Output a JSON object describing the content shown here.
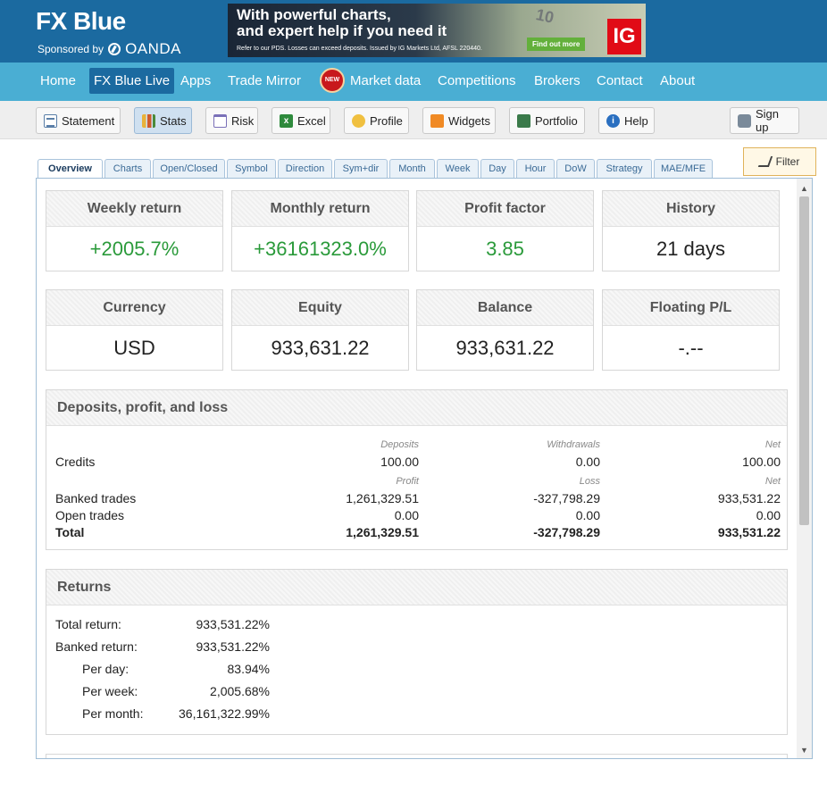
{
  "header": {
    "logo": "FX Blue",
    "sponsored_by": "Sponsored by",
    "sponsor_name": "OANDA",
    "banner": {
      "line1": "With powerful charts,",
      "line2": "and expert help if you need it",
      "fine_print": "Refer to our PDS. Losses can exceed deposits. Issued by IG Markets Ltd, AFSL 220440.",
      "cta": "Find out more",
      "brand": "IG",
      "note_text": "10"
    }
  },
  "nav": {
    "items": [
      "Home",
      "FX Blue Live",
      "Apps",
      "Trade Mirror",
      "Market data",
      "Competitions",
      "Brokers",
      "Contact",
      "About"
    ],
    "active": "FX Blue Live",
    "new_badge": "NEW"
  },
  "toolbar": {
    "buttons": [
      "Statement",
      "Stats",
      "Risk",
      "Excel",
      "Profile",
      "Widgets",
      "Portfolio",
      "Help"
    ],
    "signup": "Sign up",
    "active": "Stats"
  },
  "tabs": {
    "items": [
      "Overview",
      "Charts",
      "Open/Closed",
      "Symbol",
      "Direction",
      "Sym+dir",
      "Month",
      "Week",
      "Day",
      "Hour",
      "DoW",
      "Strategy",
      "MAE/MFE"
    ],
    "active": "Overview",
    "filter": "Filter"
  },
  "cards": [
    {
      "label": "Weekly return",
      "value": "+2005.7%",
      "positive": true
    },
    {
      "label": "Monthly return",
      "value": "+36161323.0%",
      "positive": true
    },
    {
      "label": "Profit factor",
      "value": "3.85",
      "positive": true
    },
    {
      "label": "History",
      "value": "21 days",
      "positive": false
    },
    {
      "label": "Currency",
      "value": "USD",
      "positive": false
    },
    {
      "label": "Equity",
      "value": "933,631.22",
      "positive": false
    },
    {
      "label": "Balance",
      "value": "933,631.22",
      "positive": false
    },
    {
      "label": "Floating P/L",
      "value": "-.--",
      "positive": false
    }
  ],
  "dpl": {
    "title": "Deposits, profit, and loss",
    "credits_head": [
      "Deposits",
      "Withdrawals",
      "Net"
    ],
    "credits": {
      "label": "Credits",
      "values": [
        "100.00",
        "0.00",
        "100.00"
      ]
    },
    "trades_head": [
      "Profit",
      "Loss",
      "Net"
    ],
    "banked": {
      "label": "Banked trades",
      "values": [
        "1,261,329.51",
        "-327,798.29",
        "933,531.22"
      ]
    },
    "open": {
      "label": "Open trades",
      "values": [
        "0.00",
        "0.00",
        "0.00"
      ]
    },
    "total": {
      "label": "Total",
      "values": [
        "1,261,329.51",
        "-327,798.29",
        "933,531.22"
      ]
    }
  },
  "returns": {
    "title": "Returns",
    "rows": [
      {
        "label": "Total return:",
        "value": "933,531.22%"
      },
      {
        "label": "Banked return:",
        "value": "933,531.22%"
      },
      {
        "label": "Per day:",
        "value": "83.94%"
      },
      {
        "label": "Per week:",
        "value": "2,005.68%"
      },
      {
        "label": "Per month:",
        "value": "36,161,322.99%"
      }
    ]
  }
}
